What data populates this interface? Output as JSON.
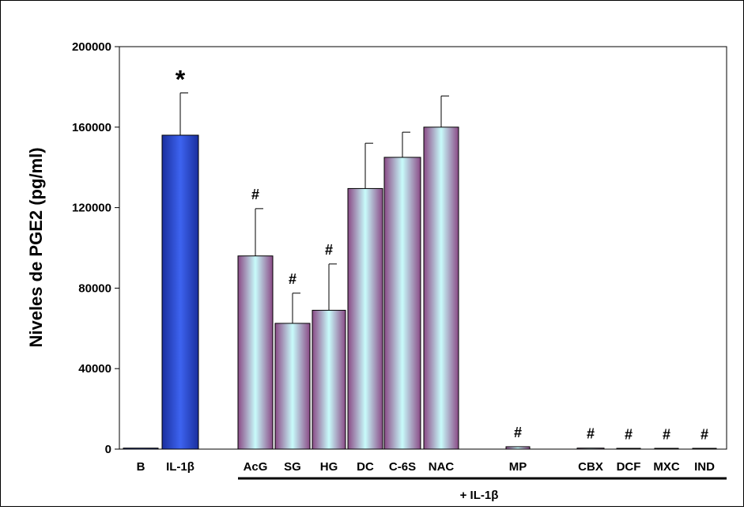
{
  "chart_data": {
    "type": "bar",
    "ylabel": "Niveles de PGE2 (pg/ml)",
    "ylim": [
      0,
      200000
    ],
    "yticks": [
      "0",
      "40000",
      "80000",
      "120000",
      "160000",
      "200000"
    ],
    "grid": false,
    "group_label": "+ IL-1β",
    "bars": [
      {
        "category": "B",
        "value": 500,
        "error": 0,
        "mark": "",
        "style": "blue"
      },
      {
        "category": "IL-1β",
        "value": 156000,
        "error": 21000,
        "mark": "*",
        "style": "blue"
      },
      {
        "category": "AcG",
        "value": 96000,
        "error": 23500,
        "mark": "#",
        "style": "gradient"
      },
      {
        "category": "SG",
        "value": 62500,
        "error": 15000,
        "mark": "#",
        "style": "gradient"
      },
      {
        "category": "HG",
        "value": 69000,
        "error": 23000,
        "mark": "#",
        "style": "gradient"
      },
      {
        "category": "DC",
        "value": 129500,
        "error": 22500,
        "mark": "",
        "style": "gradient"
      },
      {
        "category": "C-6S",
        "value": 145000,
        "error": 12500,
        "mark": "",
        "style": "gradient"
      },
      {
        "category": "NAC",
        "value": 160000,
        "error": 15500,
        "mark": "",
        "style": "gradient"
      },
      {
        "category": "MP",
        "value": 1200,
        "error": 0,
        "mark": "#",
        "style": "gradient"
      },
      {
        "category": "CBX",
        "value": 500,
        "error": 0,
        "mark": "#",
        "style": "gradient"
      },
      {
        "category": "DCF",
        "value": 200,
        "error": 0,
        "mark": "#",
        "style": "gradient"
      },
      {
        "category": "MXC",
        "value": 200,
        "error": 0,
        "mark": "#",
        "style": "gradient"
      },
      {
        "category": "IND",
        "value": 200,
        "error": 0,
        "mark": "#",
        "style": "gradient"
      }
    ],
    "colors": {
      "blue": "#2f52d8",
      "gradient_edge": "#8a4a86",
      "gradient_mid": "#c8fbfb"
    }
  }
}
